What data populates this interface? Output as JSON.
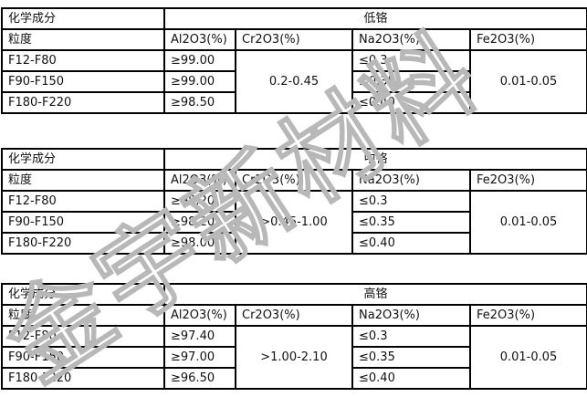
{
  "watermark": "金宇新材料",
  "tables": [
    {
      "label": "化学成分",
      "grade": "低铬",
      "headers": [
        "粒度",
        "Al2O3(%)",
        "Cr2O3(%)",
        "Na2O3(%)",
        "Fe2O3(%)"
      ],
      "rows": [
        {
          "size": "F12-F80",
          "al2o3": "≥99.00",
          "na2o3": "≤0.3"
        },
        {
          "size": "F90-F150",
          "al2o3": "≥99.00",
          "na2o3": "≤0.35"
        },
        {
          "size": "F180-F220",
          "al2o3": "≥98.50",
          "na2o3": "≤0.40"
        }
      ],
      "cr2o3": "0.2-0.45",
      "fe2o3": "0.01-0.05"
    },
    {
      "label": "化学成分",
      "grade": "中铬",
      "headers": [
        "粒度",
        "Al2O3(%)",
        "Cr2O3(%)",
        "Na2O3(%)",
        "Fe2O3(%)"
      ],
      "rows": [
        {
          "size": "F12-F80",
          "al2o3": "≥98.20",
          "na2o3": "≤0.3"
        },
        {
          "size": "F90-F150",
          "al2o3": "≥98.20",
          "na2o3": "≤0.35"
        },
        {
          "size": "F180-F220",
          "al2o3": "≥98.00",
          "na2o3": "≤0.40"
        }
      ],
      "cr2o3": ">0.45-1.00",
      "fe2o3": "0.01-0.05"
    },
    {
      "label": "化学成分",
      "grade": "高铬",
      "headers": [
        "粒度",
        "Al2O3(%)",
        "Cr2O3(%)",
        "Na2O3(%)",
        "Fe2O3(%)"
      ],
      "rows": [
        {
          "size": "F12-F80",
          "al2o3": "≥97.40",
          "na2o3": "≤0.3"
        },
        {
          "size": "F90-F150",
          "al2o3": "≥97.00",
          "na2o3": "≤0.35"
        },
        {
          "size": "F180-F220",
          "al2o3": "≥96.50",
          "na2o3": "≤0.40"
        }
      ],
      "cr2o3": ">1.00-2.10",
      "fe2o3": "0.01-0.05"
    }
  ]
}
